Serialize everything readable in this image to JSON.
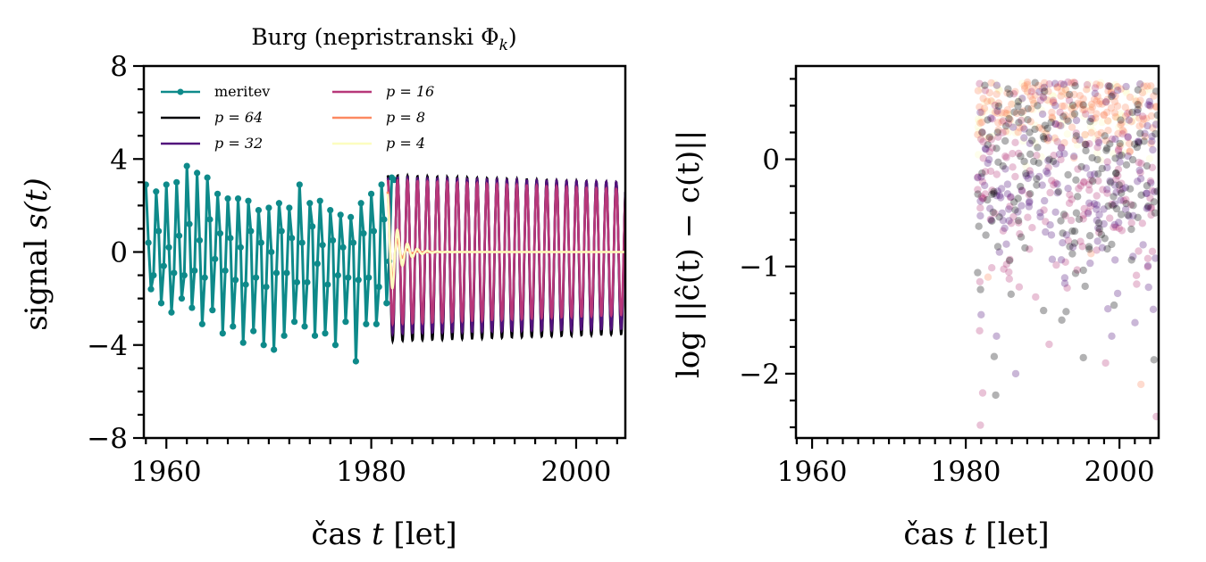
{
  "chart_data": [
    {
      "type": "line",
      "title": "Burg (nepristranski Φ_k)",
      "title_parts": {
        "main": "Burg (nepristranski Φ",
        "subscript": "k",
        "close": ")"
      },
      "xlabel": "čas t [let]",
      "xlabel_parts": {
        "word": "čas ",
        "var": "t",
        "unit": " [let]"
      },
      "ylabel": "signal s(t)",
      "ylabel_parts": {
        "word": "signal ",
        "expr": "s(t)"
      },
      "xlim": [
        1957.8,
        2004.8
      ],
      "ylim": [
        -8,
        8
      ],
      "xticks": [
        1960,
        1980,
        2000
      ],
      "xtick_labels": [
        "1960",
        "1980",
        "2000"
      ],
      "xminor_step": 2,
      "yticks": [
        8,
        4,
        0,
        -4,
        -8
      ],
      "ytick_labels": [
        "8",
        "4",
        "0",
        "−4",
        "−8"
      ],
      "yminor_step": 1,
      "grid": false,
      "legend_placement": "top-left",
      "legend": [
        {
          "label": "meritev",
          "color": "#0e8a8a",
          "marker": true
        },
        {
          "label": "p = 64",
          "color": "#000004"
        },
        {
          "label": "p = 32",
          "color": "#51127c"
        },
        {
          "label": "p = 16",
          "color": "#b73779"
        },
        {
          "label": "p = 8",
          "color": "#fc8961"
        },
        {
          "label": "p = 4",
          "color": "#fcfdbf"
        }
      ],
      "series": [
        {
          "name": "meritev",
          "color": "#0e8a8a",
          "x_start": 1958.0,
          "x_step": 0.25,
          "values": [
            2.9,
            0.4,
            -1.6,
            -1.0,
            2.6,
            0.9,
            -2.2,
            -0.6,
            2.9,
            0.2,
            -2.6,
            -0.9,
            3.0,
            0.7,
            -2.0,
            -1.0,
            3.7,
            1.2,
            -2.4,
            -0.8,
            3.4,
            0.5,
            -3.1,
            -1.1,
            3.2,
            1.4,
            -2.5,
            -0.3,
            2.5,
            0.8,
            -3.5,
            -0.8,
            2.3,
            0.6,
            -3.2,
            -1.2,
            2.3,
            0.2,
            -3.9,
            -1.4,
            2.2,
            0.9,
            -3.4,
            -1.1,
            1.8,
            0.4,
            -4.0,
            -1.5,
            1.9,
            0.0,
            -4.2,
            -0.9,
            2.1,
            0.9,
            -3.6,
            -0.9,
            1.9,
            0.6,
            -3.0,
            -1.3,
            2.9,
            0.4,
            -3.2,
            -1.3,
            2.1,
            1.1,
            -3.6,
            -0.5,
            2.2,
            0.3,
            -3.5,
            -1.4,
            1.8,
            0.5,
            -4.0,
            -1.0,
            1.6,
            0.2,
            -3.0,
            -1.1,
            1.5,
            0.4,
            -4.7,
            -1.2,
            2.1,
            0.8,
            -3.1,
            -1.1,
            2.5,
            0.9,
            -3.1,
            -1.5,
            2.9,
            1.4,
            -2.2,
            -0.4,
            3.2,
            3.1
          ]
        }
      ],
      "forecast": {
        "x_start": 1981.6,
        "x_end": 2004.8,
        "period_years": 0.97,
        "models": [
          {
            "name": "p = 64",
            "color": "#000004",
            "amp_start": 3.3,
            "amp_end": 3.0,
            "offset": -0.35,
            "decay": 0
          },
          {
            "name": "p = 32",
            "color": "#51127c",
            "amp_start": 3.2,
            "amp_end": 3.0,
            "offset": -0.2,
            "decay": 0
          },
          {
            "name": "p = 16",
            "color": "#b73779",
            "amp_start": 3.1,
            "amp_end": 2.7,
            "offset": 0.0,
            "decay": 0
          },
          {
            "name": "p = 8",
            "color": "#fc8961",
            "amp_start": 2.6,
            "amp_end": 0.0,
            "offset": 0.0,
            "decay": 0.55
          },
          {
            "name": "p = 4",
            "color": "#fcfdbf",
            "amp_start": 2.5,
            "amp_end": 0.0,
            "offset": 0.0,
            "decay": 0.9
          }
        ]
      }
    },
    {
      "type": "scatter",
      "title": "",
      "xlabel": "čas t [let]",
      "xlabel_parts": {
        "word": "čas ",
        "var": "t",
        "unit": " [let]"
      },
      "ylabel": "log ||ĉ(t) − c(t)||",
      "xlim": [
        1957.9,
        2005.1
      ],
      "ylim": [
        -2.6,
        0.87
      ],
      "xticks": [
        1960,
        1980,
        2000
      ],
      "xtick_labels": [
        "1960",
        "1980",
        "2000"
      ],
      "xminor_step": 2,
      "yticks": [
        0,
        -1,
        -2
      ],
      "ytick_labels": [
        "0",
        "−1",
        "−2"
      ],
      "yminor_step": 0.25,
      "grid": false,
      "point_alpha": 0.3,
      "series": [
        {
          "name": "p = 4",
          "color": "#fcfdbf",
          "x_range": [
            1981.5,
            2005
          ],
          "y_center": 0.45,
          "y_spread": 0.25,
          "count": 90,
          "points": [
            [
              1981.6,
              0.3
            ],
            [
              1982.5,
              0.45
            ],
            [
              1983.2,
              0.55
            ],
            [
              1984.0,
              0.5
            ],
            [
              1981.9,
              0.2
            ]
          ]
        },
        {
          "name": "p = 8",
          "color": "#fc8961",
          "x_range": [
            1981.5,
            2005
          ],
          "y_center": 0.45,
          "y_spread": 0.18,
          "count": 160,
          "points": [
            [
              1988.0,
              0.63
            ],
            [
              1990.0,
              0.66
            ],
            [
              1993.0,
              0.65
            ],
            [
              1997.0,
              0.7
            ],
            [
              2003.0,
              0.62
            ],
            [
              1996.3,
              -0.88
            ],
            [
              2002.8,
              -2.1
            ],
            [
              1982.9,
              -1.1
            ]
          ]
        },
        {
          "name": "p = 16",
          "color": "#b73779",
          "x_range": [
            1981.5,
            2005
          ],
          "y_center": -0.2,
          "y_spread": 0.45,
          "count": 160,
          "points": [
            [
              1981.8,
              -1.6
            ],
            [
              1982.2,
              -2.18
            ],
            [
              1981.9,
              -2.48
            ],
            [
              1993.2,
              -1.2
            ],
            [
              1998.2,
              -1.9
            ],
            [
              2004.8,
              -2.4
            ]
          ]
        },
        {
          "name": "p = 32",
          "color": "#51127c",
          "x_range": [
            1981.5,
            2005
          ],
          "y_center": -0.2,
          "y_spread": 0.5,
          "count": 160,
          "points": [
            [
              1982.0,
              -1.45
            ],
            [
              1984.0,
              -1.65
            ],
            [
              1986.5,
              -2.0
            ],
            [
              1999.0,
              -1.65
            ],
            [
              2004.4,
              -1.4
            ]
          ]
        },
        {
          "name": "p = 64",
          "color": "#000004",
          "x_range": [
            1981.5,
            2005
          ],
          "y_center": -0.15,
          "y_spread": 0.5,
          "count": 160,
          "points": [
            [
              1988.3,
              0.25
            ],
            [
              1989.0,
              0.28
            ],
            [
              1983.7,
              -1.84
            ],
            [
              1983.9,
              -2.2
            ],
            [
              1995.3,
              -1.85
            ],
            [
              2004.5,
              -1.87
            ],
            [
              1992.5,
              -1.5
            ]
          ]
        }
      ]
    }
  ]
}
